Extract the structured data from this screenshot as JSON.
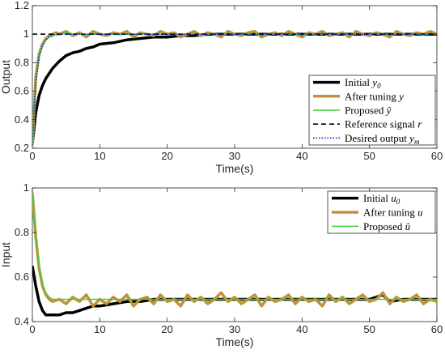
{
  "chart_data": [
    {
      "type": "line",
      "xlabel": "Time(s)",
      "ylabel": "Output",
      "xlim": [
        0,
        60
      ],
      "ylim": [
        0.2,
        1.2
      ],
      "xticks": [
        "0",
        "10",
        "20",
        "30",
        "40",
        "50",
        "60"
      ],
      "yticks": [
        "0.2",
        "0.4",
        "0.6",
        "0.8",
        "1",
        "1.2"
      ],
      "grid": false,
      "legend_position": "right",
      "series": [
        {
          "name": "Initial y0",
          "color": "#000000",
          "style": "solid",
          "x": [
            0,
            0.5,
            1,
            1.5,
            2,
            3,
            4,
            5,
            6,
            7,
            8,
            9,
            10,
            12,
            14,
            16,
            18,
            20,
            22,
            24,
            26,
            28,
            30,
            35,
            40,
            45,
            50,
            55,
            60
          ],
          "y": [
            0.23,
            0.45,
            0.57,
            0.64,
            0.69,
            0.76,
            0.81,
            0.85,
            0.87,
            0.88,
            0.9,
            0.91,
            0.93,
            0.94,
            0.96,
            0.97,
            0.98,
            0.98,
            0.99,
            0.99,
            1.0,
            1.0,
            1.0,
            1.0,
            1.0,
            1.0,
            1.0,
            1.0,
            1.0
          ]
        },
        {
          "name": "After tuning y",
          "color": "#c4903a",
          "style": "solid",
          "x": [
            0,
            0.5,
            1,
            1.5,
            2,
            2.5,
            3,
            3.5,
            4,
            5,
            6,
            7,
            8,
            9,
            10,
            11,
            12,
            13,
            14,
            15,
            16,
            17,
            18,
            19,
            20,
            21,
            22,
            23,
            24,
            25,
            26,
            27,
            28,
            29,
            30,
            31,
            32,
            33,
            34,
            35,
            36,
            37,
            38,
            39,
            40,
            41,
            42,
            43,
            44,
            45,
            46,
            47,
            48,
            49,
            50,
            51,
            52,
            53,
            54,
            55,
            56,
            57,
            58,
            59,
            60
          ],
          "y": [
            0.22,
            0.7,
            0.86,
            0.93,
            0.97,
            0.99,
            1.0,
            1.01,
            1.0,
            1.02,
            0.99,
            1.01,
            0.98,
            1.02,
            1.0,
            0.99,
            1.01,
            1.0,
            1.02,
            0.98,
            1.01,
            1.0,
            0.99,
            1.02,
            1.0,
            1.01,
            0.98,
            1.0,
            1.02,
            0.99,
            1.01,
            1.0,
            0.98,
            1.02,
            1.0,
            0.99,
            1.01,
            1.02,
            0.98,
            1.0,
            1.01,
            0.99,
            1.02,
            1.0,
            0.98,
            1.01,
            1.0,
            1.02,
            0.99,
            1.0,
            1.01,
            0.98,
            1.02,
            1.0,
            0.99,
            1.01,
            1.0,
            0.98,
            1.02,
            1.0,
            0.99,
            1.01,
            1.0,
            1.02,
            1.0
          ]
        },
        {
          "name": "Proposed ŷ",
          "color": "#3fd13f",
          "style": "solid",
          "x": [
            0,
            0.5,
            1,
            1.5,
            2,
            2.5,
            3,
            3.5,
            4,
            5,
            6,
            8,
            10,
            15,
            20,
            25,
            30,
            35,
            40,
            45,
            50,
            55,
            60
          ],
          "y": [
            0.24,
            0.68,
            0.85,
            0.92,
            0.96,
            0.98,
            0.99,
            1.0,
            1.0,
            1.01,
            1.0,
            1.0,
            1.0,
            1.0,
            1.0,
            1.0,
            1.0,
            1.0,
            1.0,
            1.0,
            1.0,
            1.0,
            1.0
          ]
        },
        {
          "name": "Reference signal r",
          "color": "#000000",
          "style": "dashed",
          "x": [
            0,
            60
          ],
          "y": [
            1.0,
            1.0
          ]
        },
        {
          "name": "Desired output ym",
          "color": "#1a2fcc",
          "style": "dotted",
          "x": [
            0,
            0.5,
            1,
            1.5,
            2,
            2.5,
            3,
            3.5,
            4,
            5,
            6,
            8,
            10,
            15,
            20,
            30,
            40,
            50,
            60
          ],
          "y": [
            0.24,
            0.66,
            0.84,
            0.92,
            0.96,
            0.98,
            0.99,
            0.995,
            1.0,
            1.0,
            1.0,
            1.0,
            1.0,
            1.0,
            1.0,
            1.0,
            1.0,
            1.0,
            1.0
          ]
        }
      ]
    },
    {
      "type": "line",
      "xlabel": "Time(s)",
      "ylabel": "Input",
      "xlim": [
        0,
        60
      ],
      "ylim": [
        0.4,
        1.0
      ],
      "xticks": [
        "0",
        "10",
        "20",
        "30",
        "40",
        "50",
        "60"
      ],
      "yticks": [
        "0.4",
        "0.6",
        "0.8",
        "1"
      ],
      "grid": false,
      "legend_position": "top-right",
      "series": [
        {
          "name": "Initial u0",
          "color": "#000000",
          "style": "solid",
          "x": [
            0,
            0.5,
            1,
            1.5,
            2,
            3,
            4,
            5,
            6,
            7,
            8,
            9,
            10,
            12,
            14,
            16,
            18,
            20,
            22,
            25,
            30,
            35,
            40,
            45,
            50,
            52,
            53,
            55,
            60
          ],
          "y": [
            0.65,
            0.56,
            0.49,
            0.45,
            0.43,
            0.43,
            0.43,
            0.44,
            0.44,
            0.45,
            0.46,
            0.47,
            0.47,
            0.48,
            0.49,
            0.49,
            0.5,
            0.5,
            0.5,
            0.5,
            0.5,
            0.5,
            0.5,
            0.5,
            0.5,
            0.52,
            0.49,
            0.5,
            0.5
          ]
        },
        {
          "name": "After tuning u",
          "color": "#c4903a",
          "style": "solid",
          "x": [
            0,
            0.5,
            1,
            1.5,
            2,
            2.5,
            3,
            4,
            5,
            6,
            7,
            8,
            9,
            10,
            11,
            12,
            13,
            14,
            15,
            16,
            17,
            18,
            19,
            20,
            21,
            22,
            23,
            24,
            25,
            26,
            27,
            28,
            29,
            30,
            31,
            32,
            33,
            34,
            35,
            36,
            37,
            38,
            39,
            40,
            41,
            42,
            43,
            44,
            45,
            46,
            47,
            48,
            49,
            50,
            51,
            52,
            53,
            54,
            55,
            56,
            57,
            58,
            59,
            60
          ],
          "y": [
            0.98,
            0.78,
            0.64,
            0.56,
            0.52,
            0.5,
            0.49,
            0.5,
            0.48,
            0.51,
            0.49,
            0.52,
            0.47,
            0.5,
            0.48,
            0.51,
            0.49,
            0.52,
            0.47,
            0.5,
            0.51,
            0.48,
            0.52,
            0.49,
            0.5,
            0.47,
            0.52,
            0.49,
            0.51,
            0.48,
            0.5,
            0.53,
            0.49,
            0.51,
            0.48,
            0.5,
            0.52,
            0.47,
            0.51,
            0.49,
            0.5,
            0.52,
            0.48,
            0.51,
            0.49,
            0.5,
            0.47,
            0.52,
            0.49,
            0.51,
            0.48,
            0.5,
            0.52,
            0.49,
            0.5,
            0.53,
            0.48,
            0.51,
            0.49,
            0.5,
            0.52,
            0.48,
            0.5,
            0.49
          ]
        },
        {
          "name": "Proposed û",
          "color": "#3fd13f",
          "style": "solid",
          "x": [
            0,
            0.5,
            1,
            1.5,
            2,
            2.5,
            3,
            4,
            5,
            6,
            8,
            10,
            15,
            20,
            25,
            30,
            35,
            40,
            45,
            50,
            55,
            60
          ],
          "y": [
            0.97,
            0.79,
            0.65,
            0.57,
            0.53,
            0.51,
            0.5,
            0.5,
            0.5,
            0.5,
            0.5,
            0.5,
            0.5,
            0.5,
            0.5,
            0.5,
            0.5,
            0.5,
            0.5,
            0.5,
            0.5,
            0.5
          ]
        }
      ]
    }
  ],
  "legends": [
    {
      "entries": [
        {
          "name": "Initial ",
          "sym": "y",
          "sub": "0",
          "hat": false
        },
        {
          "name": "After tuning ",
          "sym": "y",
          "sub": "",
          "hat": false
        },
        {
          "name": "Proposed ",
          "sym": "y",
          "sub": "",
          "hat": true
        },
        {
          "name": "Reference signal ",
          "sym": "r",
          "sub": "",
          "hat": false
        },
        {
          "name": "Desired output ",
          "sym": "y",
          "sub": "m",
          "hat": false
        }
      ]
    },
    {
      "entries": [
        {
          "name": "Initial ",
          "sym": "u",
          "sub": "0",
          "hat": false
        },
        {
          "name": "After tuning ",
          "sym": "u",
          "sub": "",
          "hat": false
        },
        {
          "name": "Proposed ",
          "sym": "u",
          "sub": "",
          "hat": true
        }
      ]
    }
  ]
}
